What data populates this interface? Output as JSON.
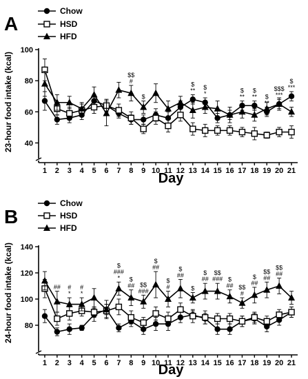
{
  "chart_data": [
    {
      "type": "line",
      "panel_label": "A",
      "xlabel": "Day",
      "ylabel": "23-hour food intake (kcal)",
      "ylim": [
        30,
        100
      ],
      "yticks": [
        40,
        60,
        80,
        100
      ],
      "x": [
        1,
        2,
        3,
        4,
        5,
        6,
        7,
        8,
        9,
        10,
        11,
        12,
        13,
        14,
        15,
        16,
        17,
        18,
        19,
        20,
        21
      ],
      "series": [
        {
          "name": "Chow",
          "marker": "circle-filled",
          "values": [
            67,
            55,
            56,
            58,
            67,
            64,
            59,
            55,
            55,
            58,
            56,
            63,
            68,
            66,
            56,
            58,
            64,
            64,
            60,
            65,
            70
          ],
          "errors": [
            6,
            3,
            3,
            3,
            4,
            4,
            3,
            3,
            3,
            4,
            4,
            4,
            3,
            3,
            3,
            3,
            3,
            3,
            3,
            3,
            3
          ]
        },
        {
          "name": "HSD",
          "marker": "square-open",
          "values": [
            87,
            62,
            59,
            61,
            63,
            64,
            61,
            56,
            49,
            56,
            51,
            58,
            49,
            48,
            48,
            48,
            47,
            46,
            45,
            47,
            47
          ],
          "errors": [
            7,
            4,
            4,
            4,
            4,
            4,
            4,
            4,
            3,
            4,
            4,
            4,
            4,
            4,
            3,
            3,
            3,
            4,
            2,
            3,
            4
          ]
        },
        {
          "name": "HFD",
          "marker": "triangle-filled",
          "values": [
            78,
            66,
            66,
            62,
            71,
            59,
            74,
            72,
            63,
            72,
            62,
            66,
            61,
            63,
            62,
            58,
            60,
            58,
            62,
            65,
            60
          ],
          "errors": [
            8,
            5,
            4,
            4,
            5,
            8,
            5,
            5,
            4,
            6,
            5,
            4,
            5,
            4,
            5,
            5,
            4,
            4,
            4,
            4,
            3
          ]
        }
      ],
      "annotations": [
        {
          "x": 8,
          "series": "HFD",
          "lines": [
            "$$",
            "#"
          ]
        },
        {
          "x": 9,
          "series": "HFD",
          "lines": [
            "$"
          ]
        },
        {
          "x": 13,
          "series": "Chow",
          "lines": [
            "$",
            "**"
          ]
        },
        {
          "x": 14,
          "series": "Chow",
          "lines": [
            "$",
            "*"
          ]
        },
        {
          "x": 17,
          "series": "Chow",
          "lines": [
            "$",
            "**"
          ]
        },
        {
          "x": 18,
          "series": "Chow",
          "lines": [
            "$",
            "**"
          ]
        },
        {
          "x": 19,
          "series": "Chow",
          "lines": [
            "$",
            "**"
          ]
        },
        {
          "x": 20,
          "series": "Chow",
          "lines": [
            "$$$",
            "***"
          ]
        },
        {
          "x": 21,
          "series": "Chow",
          "lines": [
            "$",
            "***"
          ]
        }
      ]
    },
    {
      "type": "line",
      "panel_label": "B",
      "xlabel": "Day",
      "ylabel": "24-hour food intake (kcal)",
      "ylim": [
        60,
        140
      ],
      "yticks": [
        80,
        100,
        120,
        140
      ],
      "x": [
        1,
        2,
        3,
        4,
        5,
        6,
        7,
        8,
        9,
        10,
        11,
        12,
        13,
        14,
        15,
        16,
        17,
        18,
        19,
        20,
        21
      ],
      "series": [
        {
          "name": "Chow",
          "marker": "circle-filled",
          "values": [
            87,
            75,
            77,
            78,
            88,
            92,
            78,
            83,
            77,
            81,
            81,
            86,
            88,
            85,
            77,
            77,
            83,
            85,
            79,
            84,
            90
          ],
          "errors": [
            5,
            3,
            4,
            2,
            5,
            4,
            3,
            4,
            4,
            5,
            5,
            4,
            3,
            4,
            4,
            4,
            4,
            4,
            4,
            4,
            4
          ]
        },
        {
          "name": "HSD",
          "marker": "square-open",
          "values": [
            108,
            85,
            89,
            91,
            90,
            91,
            94,
            86,
            82,
            89,
            85,
            92,
            87,
            86,
            85,
            85,
            83,
            86,
            83,
            88,
            90
          ],
          "errors": [
            7,
            5,
            5,
            4,
            4,
            5,
            6,
            5,
            4,
            5,
            5,
            5,
            5,
            5,
            4,
            4,
            4,
            4,
            4,
            4,
            4
          ]
        },
        {
          "name": "HFD",
          "marker": "triangle-filled",
          "values": [
            114,
            98,
            96,
            96,
            101,
            92,
            108,
            101,
            98,
            111,
            100,
            108,
            101,
            106,
            106,
            102,
            97,
            103,
            107,
            110,
            101
          ],
          "errors": [
            7,
            8,
            5,
            5,
            7,
            7,
            5,
            6,
            5,
            10,
            6,
            7,
            4,
            6,
            6,
            5,
            4,
            6,
            6,
            6,
            5
          ]
        }
      ],
      "annotations": [
        {
          "x": 2,
          "series": "HFD",
          "lines": [
            "##"
          ]
        },
        {
          "x": 3,
          "series": "HFD",
          "lines": [
            "#",
            "*"
          ]
        },
        {
          "x": 4,
          "series": "HFD",
          "lines": [
            "#",
            "*"
          ]
        },
        {
          "x": 7,
          "series": "HFD",
          "lines": [
            "$",
            "###",
            "*"
          ]
        },
        {
          "x": 8,
          "series": "HFD",
          "lines": [
            "$",
            "##"
          ]
        },
        {
          "x": 9,
          "series": "HFD",
          "lines": [
            "$$",
            "###"
          ]
        },
        {
          "x": 10,
          "series": "HFD",
          "lines": [
            "$",
            "##"
          ]
        },
        {
          "x": 11,
          "series": "HFD",
          "lines": [
            "$",
            "#"
          ]
        },
        {
          "x": 12,
          "series": "HFD",
          "lines": [
            "$",
            "##"
          ]
        },
        {
          "x": 13,
          "series": "HFD",
          "lines": [
            "$"
          ]
        },
        {
          "x": 14,
          "series": "HFD",
          "lines": [
            "$",
            "##"
          ]
        },
        {
          "x": 15,
          "series": "HFD",
          "lines": [
            "$$",
            "###"
          ]
        },
        {
          "x": 16,
          "series": "HFD",
          "lines": [
            "$",
            "##"
          ]
        },
        {
          "x": 17,
          "series": "HFD",
          "lines": [
            "$$",
            "#"
          ]
        },
        {
          "x": 18,
          "series": "HFD",
          "lines": [
            "$",
            "##"
          ]
        },
        {
          "x": 19,
          "series": "HFD",
          "lines": [
            "$$",
            "##"
          ]
        },
        {
          "x": 20,
          "series": "HFD",
          "lines": [
            "$$",
            "##"
          ]
        }
      ]
    }
  ]
}
